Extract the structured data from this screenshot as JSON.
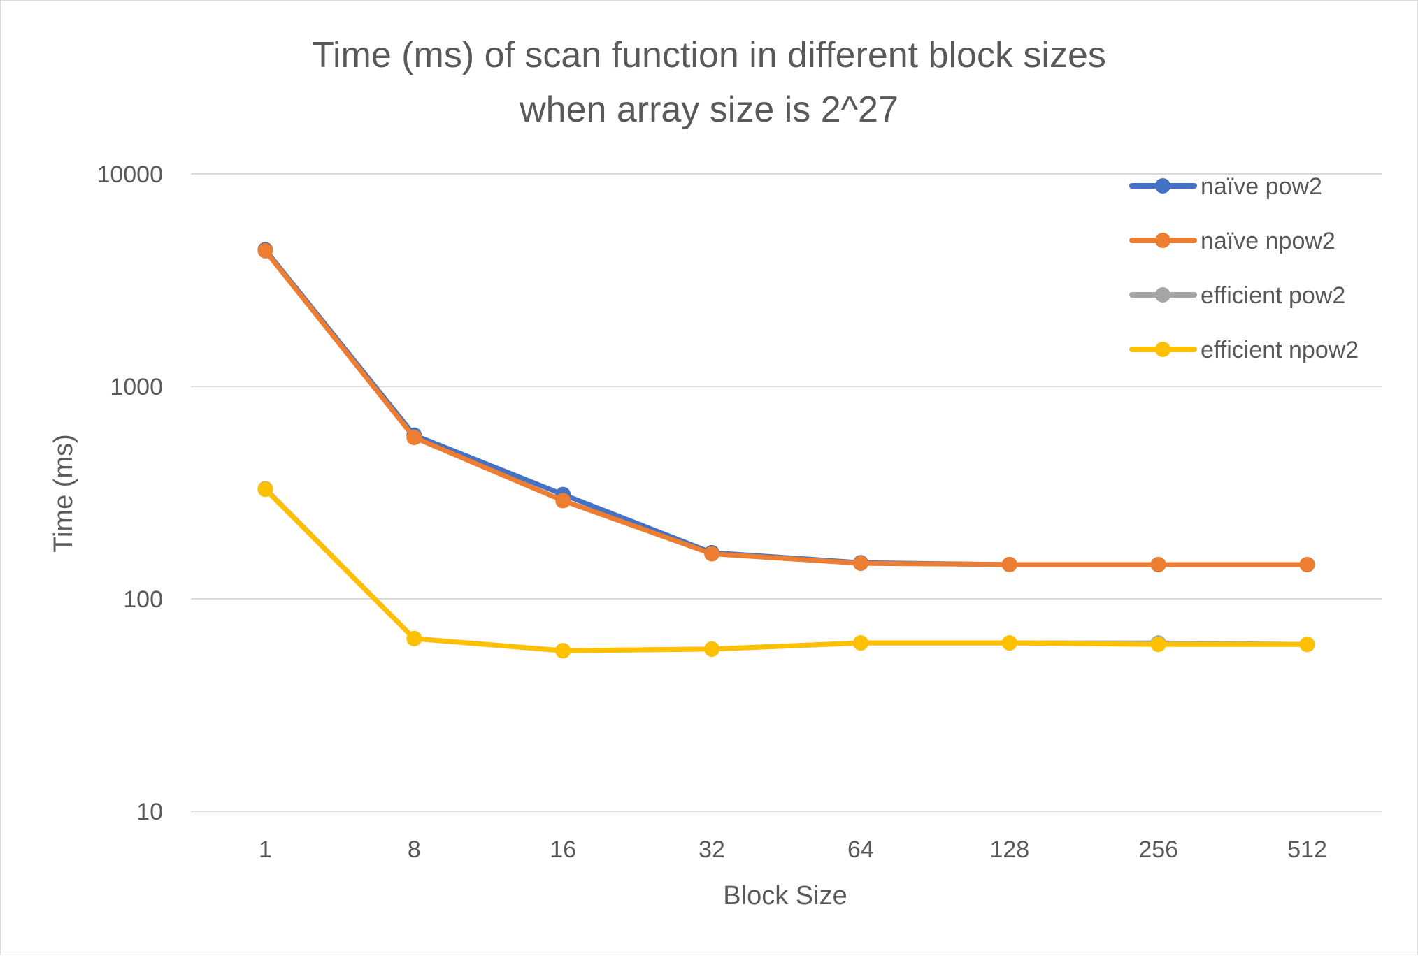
{
  "chart_data": {
    "type": "line",
    "title_line1": "Time (ms) of scan function in different block sizes",
    "title_line2": "when array size is 2^27",
    "xlabel": "Block Size",
    "ylabel": "Time (ms)",
    "y_scale": "log",
    "ylim": [
      10,
      10000
    ],
    "y_ticks": [
      "10",
      "100",
      "1000",
      "10000"
    ],
    "categories": [
      "1",
      "8",
      "16",
      "32",
      "64",
      "128",
      "256",
      "512"
    ],
    "grid": "horizontal",
    "legend_position": "top-right",
    "series": [
      {
        "name": "naïve pow2",
        "color": "#4472C4",
        "values": [
          4400,
          590,
          310,
          165,
          148,
          145,
          145,
          145
        ]
      },
      {
        "name": "naïve npow2",
        "color": "#ED7D31",
        "values": [
          4350,
          575,
          290,
          163,
          147,
          145,
          145,
          145
        ]
      },
      {
        "name": "efficient pow2",
        "color": "#A5A5A5",
        "values": [
          330,
          65,
          57,
          58,
          62,
          62,
          62,
          61
        ]
      },
      {
        "name": "efficient npow2",
        "color": "#FFC000",
        "values": [
          328,
          65,
          57,
          58,
          62,
          62,
          61,
          61
        ]
      }
    ]
  }
}
